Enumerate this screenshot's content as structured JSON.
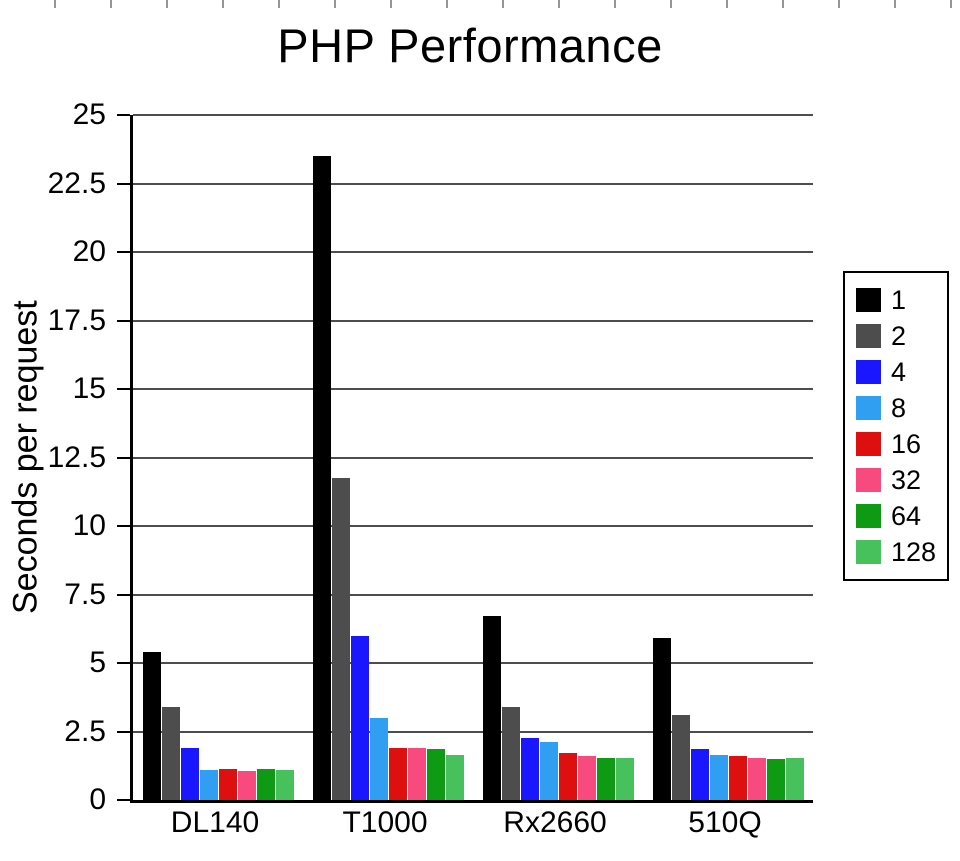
{
  "chart_data": {
    "type": "bar",
    "title": "PHP Performance",
    "ylabel": "Seconds per request",
    "xlabel": "",
    "ylim": [
      0,
      25
    ],
    "grid": "horizontal",
    "legend_position": "right",
    "yticks": [
      0,
      2.5,
      5,
      7.5,
      10,
      12.5,
      15,
      17.5,
      20,
      22.5,
      25
    ],
    "ytick_labels": [
      "0",
      "2.5",
      "5",
      "7.5",
      "10",
      "12.5",
      "15",
      "17.5",
      "20",
      "22.5",
      "25"
    ],
    "categories": [
      "DL140",
      "T1000",
      "Rx2660",
      "510Q"
    ],
    "series": [
      {
        "name": "1",
        "color": "#000000",
        "values": [
          5.4,
          23.5,
          6.7,
          5.9
        ]
      },
      {
        "name": "2",
        "color": "#4d4d4d",
        "values": [
          3.4,
          11.75,
          3.4,
          3.1
        ]
      },
      {
        "name": "4",
        "color": "#1a16ff",
        "values": [
          1.9,
          6.0,
          2.25,
          1.85
        ]
      },
      {
        "name": "8",
        "color": "#309ff2",
        "values": [
          1.1,
          3.0,
          2.1,
          1.65
        ]
      },
      {
        "name": "16",
        "color": "#dd0f0f",
        "values": [
          1.15,
          1.9,
          1.7,
          1.6
        ]
      },
      {
        "name": "32",
        "color": "#f74b80",
        "values": [
          1.05,
          1.9,
          1.6,
          1.55
        ]
      },
      {
        "name": "64",
        "color": "#0f9a13",
        "values": [
          1.15,
          1.85,
          1.55,
          1.5
        ]
      },
      {
        "name": "128",
        "color": "#46c15c",
        "values": [
          1.1,
          1.65,
          1.55,
          1.55
        ]
      }
    ]
  }
}
